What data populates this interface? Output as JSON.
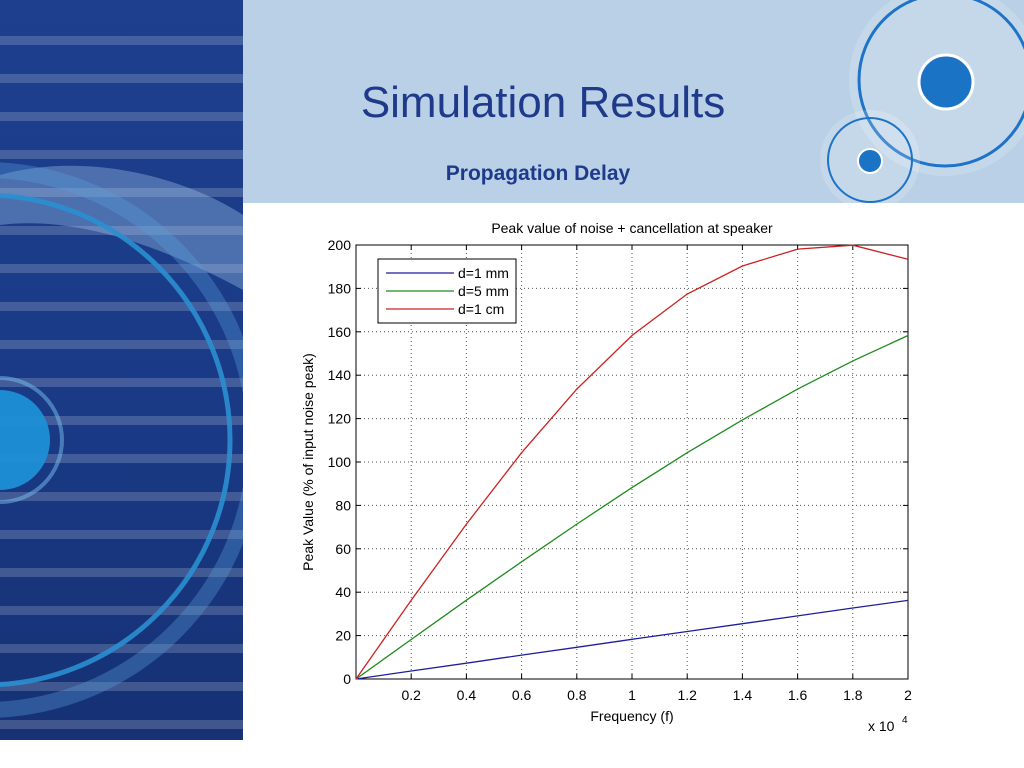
{
  "slide": {
    "title": "Simulation Results",
    "subtitle": "Propagation Delay"
  },
  "colors": {
    "sidebar": "#1d3f8e",
    "header_band": "#b9d0e6",
    "footer": "#12386b",
    "title_text": "#1f3a8a"
  },
  "chart_data": {
    "type": "line",
    "title": "Peak value of noise + cancellation at speaker",
    "xlabel": "Frequency (f)",
    "ylabel": "Peak Value (% of input noise peak)",
    "x_multiplier": "x 10",
    "x_multiplier_exponent": "4",
    "xlim": [
      0,
      2
    ],
    "ylim": [
      0,
      200
    ],
    "xticks": [
      0,
      0.2,
      0.4,
      0.6,
      0.8,
      1,
      1.2,
      1.4,
      1.6,
      1.8,
      2
    ],
    "xtick_labels": [
      "",
      "0.2",
      "0.4",
      "0.6",
      "0.8",
      "1",
      "1.2",
      "1.4",
      "1.6",
      "1.8",
      "2"
    ],
    "yticks": [
      0,
      20,
      40,
      60,
      80,
      100,
      120,
      140,
      160,
      180,
      200
    ],
    "ytick_labels": [
      "0",
      "20",
      "40",
      "60",
      "80",
      "100",
      "120",
      "140",
      "160",
      "180",
      "200"
    ],
    "grid": true,
    "legend_position": "top-left",
    "x": [
      0,
      0.2,
      0.4,
      0.6,
      0.8,
      1.0,
      1.2,
      1.4,
      1.6,
      1.8,
      2.0
    ],
    "series": [
      {
        "name": "d=1 mm",
        "color": "#1f1f9a",
        "values": [
          0,
          3.7,
          7.3,
          11.0,
          14.6,
          18.3,
          21.9,
          25.5,
          29.1,
          32.7,
          36.2
        ]
      },
      {
        "name": "d=5 mm",
        "color": "#1e8c1e",
        "values": [
          0,
          18.2,
          36.3,
          54.0,
          71.4,
          88.2,
          104.3,
          119.4,
          133.6,
          146.6,
          158.3
        ]
      },
      {
        "name": "d=1 cm",
        "color": "#cc2222",
        "values": [
          0,
          36.3,
          71.4,
          104.3,
          133.6,
          158.3,
          177.4,
          190.3,
          198.1,
          199.9,
          193.4
        ]
      }
    ]
  }
}
